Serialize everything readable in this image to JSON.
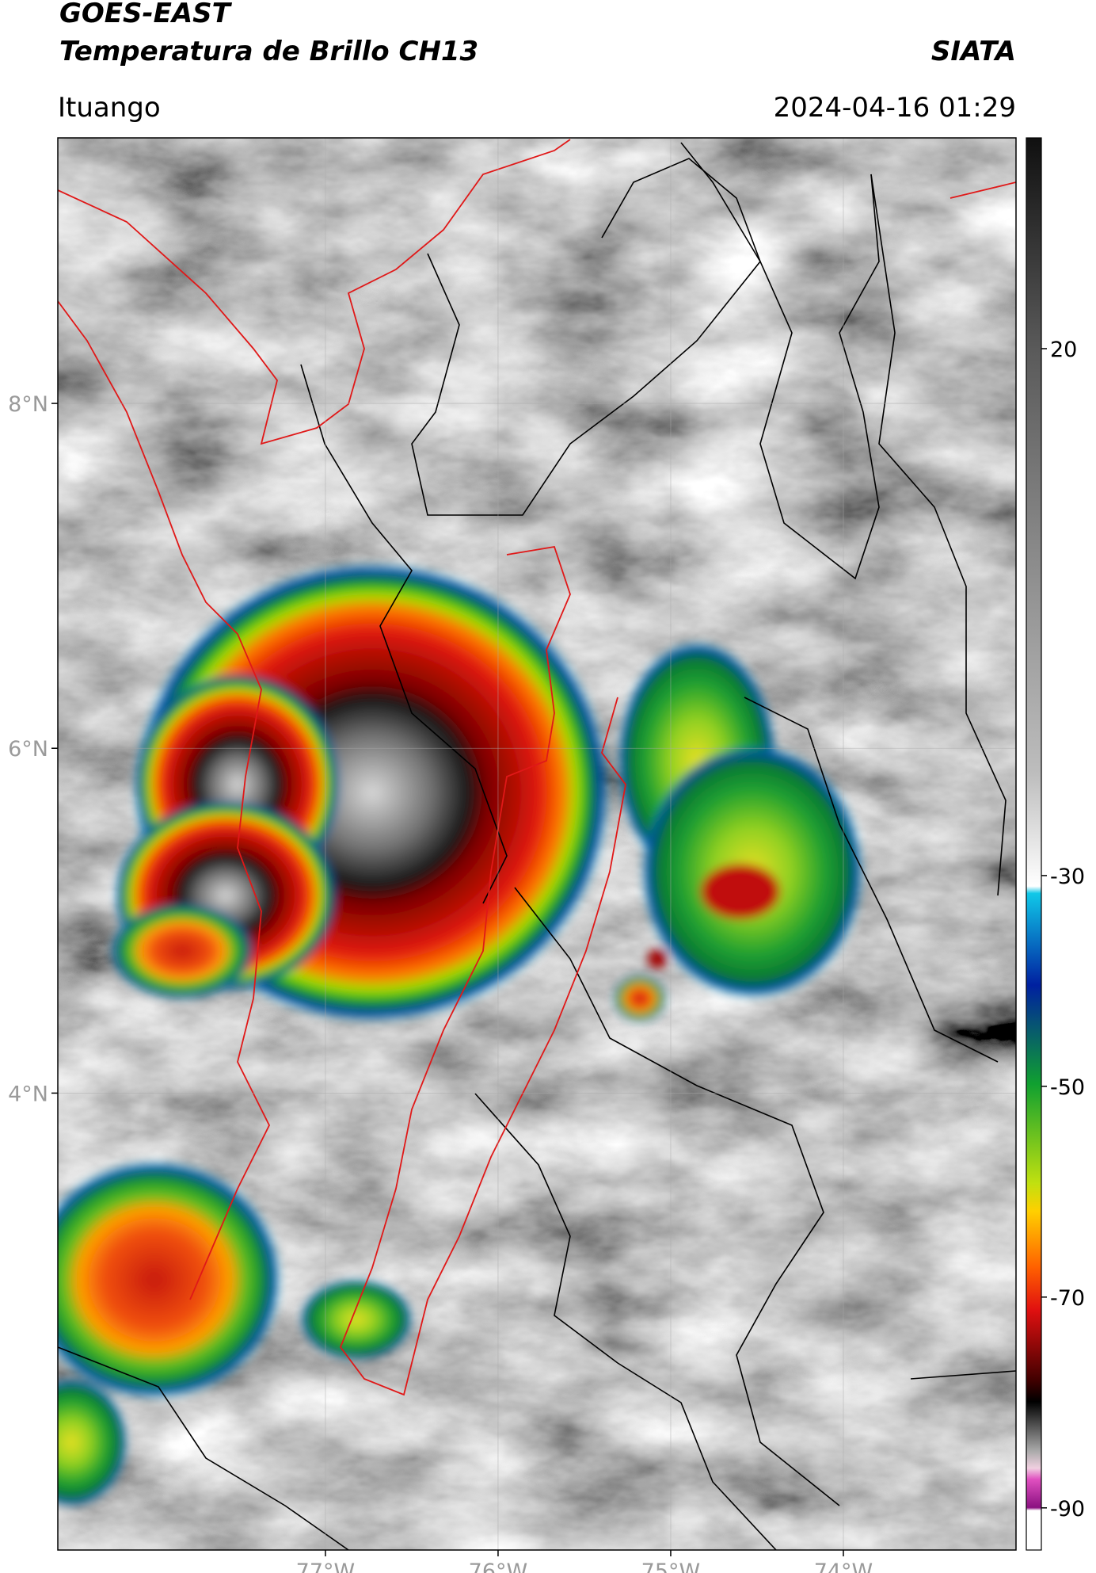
{
  "header": {
    "satellite": "GOES-EAST",
    "product": "Temperatura de Brillo CH13",
    "agency": "SIATA",
    "location": "Ituango",
    "timestamp": "2024-04-16 01:29"
  },
  "map": {
    "xlim": [
      -78.55,
      -73.0
    ],
    "ylim": [
      1.35,
      9.54
    ],
    "lat_ticks": [
      {
        "value": 8,
        "label": "8°N"
      },
      {
        "value": 6,
        "label": "6°N"
      },
      {
        "value": 4,
        "label": "4°N"
      }
    ],
    "lon_ticks": [
      {
        "value": -77,
        "label": "77°W"
      },
      {
        "value": -76,
        "label": "76°W"
      },
      {
        "value": -75,
        "label": "75°W"
      },
      {
        "value": -74,
        "label": "74°W"
      }
    ],
    "grid": true
  },
  "colorbar": {
    "range": [
      -94,
      40
    ],
    "ticks": [
      20,
      -30,
      -50,
      -70,
      -90
    ]
  }
}
